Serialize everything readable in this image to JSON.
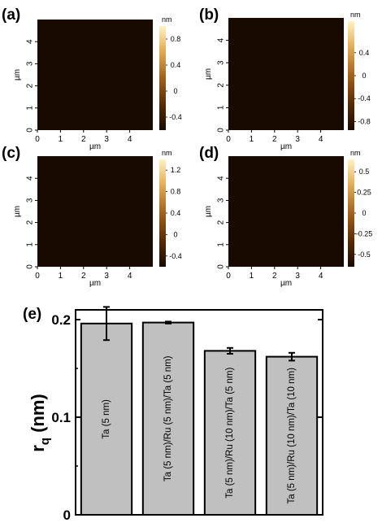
{
  "panels": [
    {
      "label": "(a)",
      "colorbar": {
        "unit": "nm",
        "ticks": [
          {
            "v": 0.8,
            "t": "0.8"
          },
          {
            "v": 0.4,
            "t": "0.4"
          },
          {
            "v": 0,
            "t": "0"
          },
          {
            "v": -0.4,
            "t": "-0.4"
          }
        ],
        "range": [
          -0.6,
          1.0
        ]
      }
    },
    {
      "label": "(b)",
      "colorbar": {
        "unit": "nm",
        "ticks": [
          {
            "v": 0.4,
            "t": "0.4"
          },
          {
            "v": 0,
            "t": "0"
          },
          {
            "v": -0.4,
            "t": "-0.4"
          },
          {
            "v": -0.8,
            "t": "-0.8"
          }
        ],
        "range": [
          -0.95,
          0.95
        ]
      }
    },
    {
      "label": "(c)",
      "colorbar": {
        "unit": "nm",
        "ticks": [
          {
            "v": 1.2,
            "t": "1.2"
          },
          {
            "v": 0.8,
            "t": "0.8"
          },
          {
            "v": 0.4,
            "t": "0.4"
          },
          {
            "v": 0,
            "t": "0"
          },
          {
            "v": -0.4,
            "t": "-0.4"
          }
        ],
        "range": [
          -0.6,
          1.4
        ]
      }
    },
    {
      "label": "(d)",
      "colorbar": {
        "unit": "nm",
        "ticks": [
          {
            "v": 0.5,
            "t": "0.5"
          },
          {
            "v": 0.25,
            "t": "0.25"
          },
          {
            "v": 0,
            "t": "0"
          },
          {
            "v": -0.25,
            "t": "-0.25"
          },
          {
            "v": -0.5,
            "t": "-0.5"
          }
        ],
        "range": [
          -0.65,
          0.65
        ]
      }
    }
  ],
  "afm_axes": {
    "unit_label": "µm",
    "x_ticks": [
      "0",
      "1",
      "2",
      "3",
      "4"
    ],
    "y_ticks": [
      "0",
      "1",
      "2",
      "3",
      "4"
    ],
    "extent": [
      0,
      5
    ]
  },
  "colors": {
    "afm_dark": "#1a0a00",
    "afm_mid": "#a0621c",
    "afm_light": "#fff2c8",
    "bar_fill": "#c0c0c0",
    "bar_edge": "#000000"
  },
  "chart_data": {
    "type": "bar",
    "panel_label": "(e)",
    "title": "",
    "xlabel": "",
    "ylabel": "r",
    "ylabel_subscript": "q",
    "ylabel_unit": " (nm)",
    "ylim": [
      0,
      0.21
    ],
    "yticks": [
      {
        "v": 0,
        "t": "0"
      },
      {
        "v": 0.1,
        "t": "0.1"
      },
      {
        "v": 0.2,
        "t": "0.2"
      }
    ],
    "categories": [
      "Ta (5 nm)",
      "Ta (5 nm)/Ru (5 nm)/Ta (5 nm)",
      "Ta (5 nm)/Ru (10 nm)/Ta (5 nm)",
      "Ta (5 nm)/Ru (10 nm)/Ta (10 nm)"
    ],
    "values": [
      0.196,
      0.197,
      0.168,
      0.162
    ],
    "errors": [
      0.017,
      0.001,
      0.003,
      0.004
    ],
    "grid": false
  }
}
